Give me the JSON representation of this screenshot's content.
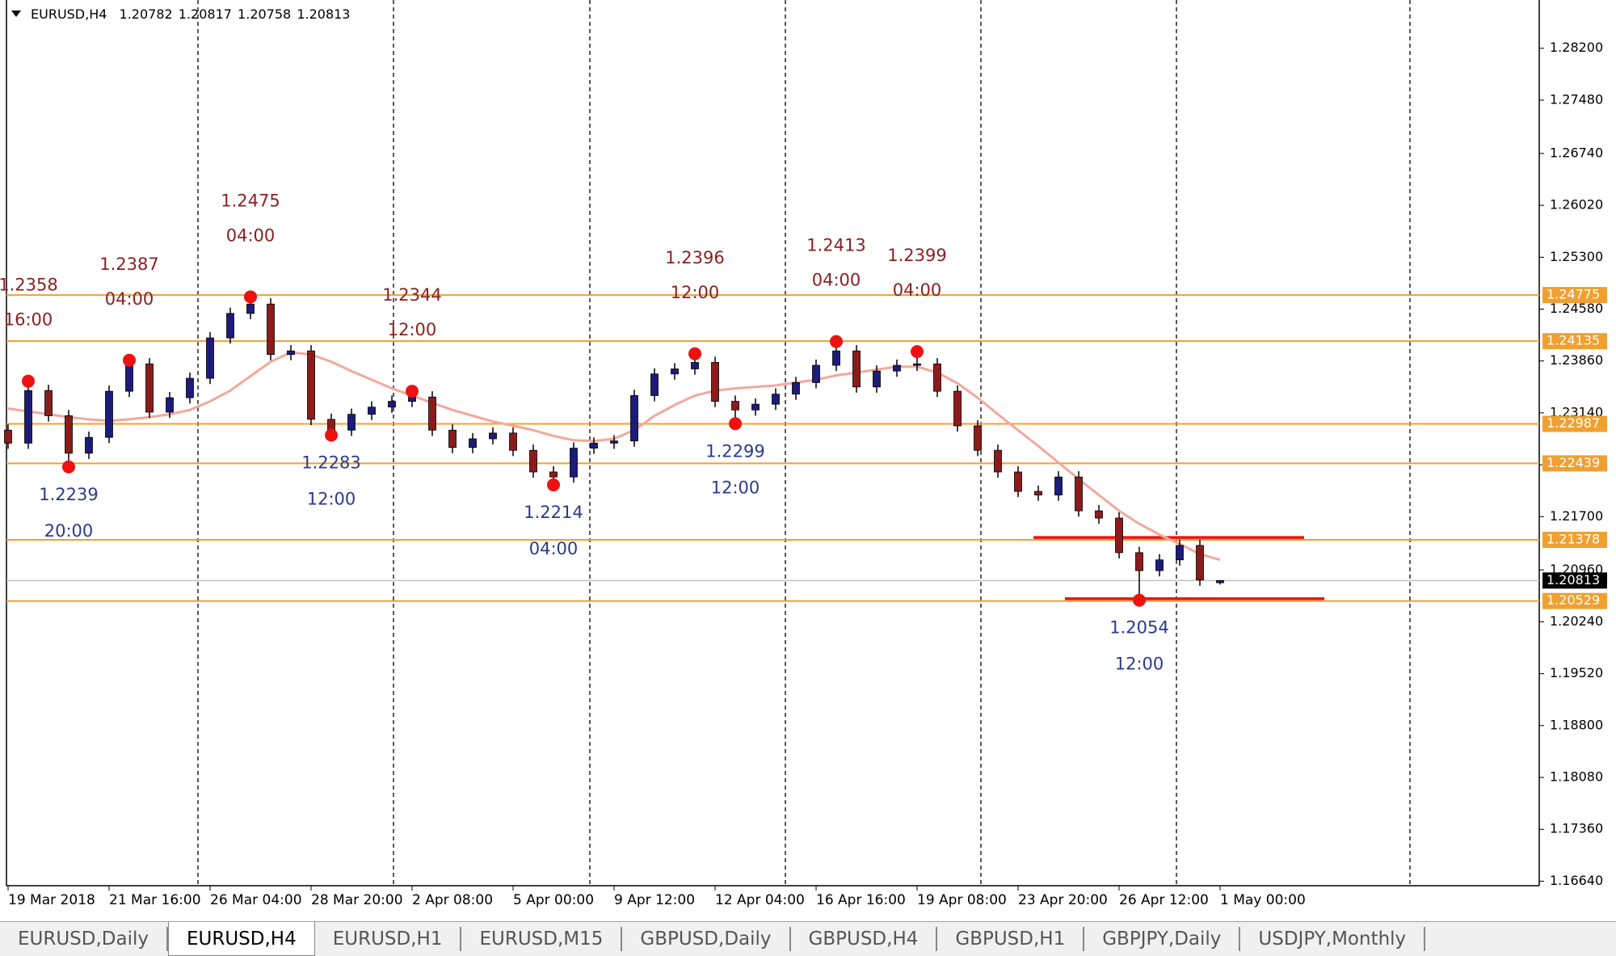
{
  "chart_data": {
    "type": "candlestick",
    "title": "EURUSD,H4",
    "candles": {
      "open": [
        1.229,
        1.2272,
        1.2345,
        1.231,
        1.2258,
        1.228,
        1.2344,
        1.2382,
        1.2315,
        1.2335,
        1.2362,
        1.2418,
        1.2452,
        1.2465,
        1.2395,
        1.24,
        1.2305,
        1.229,
        1.2312,
        1.2322,
        1.233,
        1.2336,
        1.229,
        1.2266,
        1.2278,
        1.2286,
        1.2262,
        1.2232,
        1.2225,
        1.2265,
        1.2272,
        1.2275,
        1.2338,
        1.2368,
        1.2375,
        1.2384,
        1.233,
        1.2318,
        1.2326,
        1.234,
        1.2356,
        1.238,
        1.24,
        1.235,
        1.2372,
        1.238,
        1.2382,
        1.2344,
        1.2296,
        1.2262,
        1.2232,
        1.2205,
        1.22,
        1.2225,
        1.2178,
        1.2168,
        1.212,
        1.2095,
        1.211,
        1.213,
        1.20782
      ],
      "high": [
        1.2298,
        1.2358,
        1.2353,
        1.2318,
        1.2288,
        1.2352,
        1.2387,
        1.239,
        1.2343,
        1.237,
        1.2426,
        1.246,
        1.2475,
        1.2473,
        1.2408,
        1.2408,
        1.2313,
        1.232,
        1.233,
        1.2338,
        1.2344,
        1.2344,
        1.2298,
        1.2286,
        1.2294,
        1.2294,
        1.227,
        1.224,
        1.2273,
        1.228,
        1.2283,
        1.2346,
        1.2376,
        1.2383,
        1.2396,
        1.2392,
        1.2338,
        1.2334,
        1.2348,
        1.2364,
        1.2388,
        1.2413,
        1.2408,
        1.238,
        1.2388,
        1.2399,
        1.239,
        1.2352,
        1.2304,
        1.227,
        1.224,
        1.2213,
        1.2233,
        1.2233,
        1.2186,
        1.2176,
        1.2128,
        1.2118,
        1.2138,
        1.2138,
        1.20817
      ],
      "low": [
        1.2264,
        1.2264,
        1.2302,
        1.2239,
        1.225,
        1.2272,
        1.2336,
        1.2307,
        1.2307,
        1.2327,
        1.2354,
        1.241,
        1.2444,
        1.2387,
        1.2387,
        1.2297,
        1.2283,
        1.2282,
        1.2304,
        1.2314,
        1.2322,
        1.2282,
        1.2258,
        1.2258,
        1.227,
        1.2254,
        1.2224,
        1.2214,
        1.2217,
        1.2257,
        1.2264,
        1.2267,
        1.233,
        1.236,
        1.2367,
        1.2322,
        1.2299,
        1.231,
        1.2318,
        1.2332,
        1.2348,
        1.2372,
        1.2342,
        1.2342,
        1.2364,
        1.2372,
        1.2336,
        1.2288,
        1.2254,
        1.2224,
        1.2197,
        1.2192,
        1.2192,
        1.217,
        1.216,
        1.2112,
        1.2054,
        1.2087,
        1.2102,
        1.2074,
        1.20758
      ],
      "close": [
        1.2272,
        1.2345,
        1.231,
        1.2258,
        1.228,
        1.2344,
        1.2382,
        1.2315,
        1.2335,
        1.2362,
        1.2418,
        1.2452,
        1.2465,
        1.2395,
        1.24,
        1.2305,
        1.229,
        1.2312,
        1.2322,
        1.233,
        1.2336,
        1.229,
        1.2266,
        1.2278,
        1.2286,
        1.2262,
        1.2232,
        1.2225,
        1.2265,
        1.2272,
        1.2275,
        1.2338,
        1.2368,
        1.2375,
        1.2384,
        1.233,
        1.2318,
        1.2326,
        1.234,
        1.2356,
        1.238,
        1.24,
        1.235,
        1.2372,
        1.238,
        1.2382,
        1.2344,
        1.2296,
        1.2262,
        1.2232,
        1.2205,
        1.22,
        1.2225,
        1.2178,
        1.2168,
        1.212,
        1.2095,
        1.211,
        1.213,
        1.2082,
        1.20813
      ],
      "up_color": "#1c1c7a",
      "down_color": "#8b1c1c"
    },
    "ma": {
      "color": "#f2a89c",
      "values": [
        1.232,
        1.2316,
        1.2312,
        1.2308,
        1.2305,
        1.2303,
        1.2305,
        1.2308,
        1.2312,
        1.2318,
        1.233,
        1.2345,
        1.2365,
        1.2385,
        1.2398,
        1.2395,
        1.2385,
        1.2372,
        1.236,
        1.2348,
        1.2338,
        1.2328,
        1.2318,
        1.231,
        1.2302,
        1.2296,
        1.229,
        1.2282,
        1.2276,
        1.2275,
        1.2278,
        1.229,
        1.231,
        1.2325,
        1.2338,
        1.2345,
        1.2348,
        1.235,
        1.2352,
        1.2356,
        1.236,
        1.2366,
        1.237,
        1.2374,
        1.2378,
        1.2378,
        1.237,
        1.2355,
        1.2335,
        1.2312,
        1.229,
        1.2268,
        1.2245,
        1.2222,
        1.22,
        1.2178,
        1.216,
        1.2145,
        1.2132,
        1.2118,
        1.211
      ]
    },
    "categories": [
      "19 Mar 2018",
      "21 Mar 16:00",
      "26 Mar 04:00",
      "28 Mar 20:00",
      "2 Apr 08:00",
      "5 Apr 00:00",
      "9 Apr 12:00",
      "12 Apr 04:00",
      "16 Apr 16:00",
      "19 Apr 08:00",
      "23 Apr 20:00",
      "26 Apr 12:00",
      "1 May 00:00"
    ],
    "ylim": [
      1.166,
      1.2887
    ],
    "yticks": [
      {
        "value": 1.282,
        "label": "1.28200"
      },
      {
        "value": 1.2748,
        "label": "1.27480"
      },
      {
        "value": 1.2674,
        "label": "1.26740"
      },
      {
        "value": 1.2602,
        "label": "1.26020"
      },
      {
        "value": 1.253,
        "label": "1.25300"
      },
      {
        "value": 1.2458,
        "label": "1.24580"
      },
      {
        "value": 1.2386,
        "label": "1.23860"
      },
      {
        "value": 1.2314,
        "label": "1.23140"
      },
      {
        "value": 1.2242,
        "label": "1.22420"
      },
      {
        "value": 1.217,
        "label": "1.21700"
      },
      {
        "value": 1.2096,
        "label": "1.20960"
      },
      {
        "value": 1.2024,
        "label": "1.20240"
      },
      {
        "value": 1.1952,
        "label": "1.19520"
      },
      {
        "value": 1.188,
        "label": "1.18800"
      },
      {
        "value": 1.1808,
        "label": "1.18080"
      },
      {
        "value": 1.1736,
        "label": "1.17360"
      },
      {
        "value": 1.1664,
        "label": "1.16640"
      }
    ],
    "levels": {
      "color": "#f0a030",
      "values": [
        1.24775,
        1.24135,
        1.22987,
        1.22439,
        1.21378,
        1.20529
      ]
    },
    "red_lines": {
      "color": "#ee1111",
      "values": [
        1.2141,
        1.2056
      ]
    },
    "swings": [
      {
        "value": 1.2358,
        "time": "16:00",
        "kind": "high"
      },
      {
        "value": 1.2239,
        "time": "20:00",
        "kind": "low"
      },
      {
        "value": 1.2387,
        "time": "04:00",
        "kind": "high"
      },
      {
        "value": 1.2475,
        "time": "04:00",
        "kind": "high"
      },
      {
        "value": 1.2283,
        "time": "12:00",
        "kind": "low"
      },
      {
        "value": 1.2344,
        "time": "12:00",
        "kind": "high"
      },
      {
        "value": 1.2214,
        "time": "04:00",
        "kind": "low"
      },
      {
        "value": 1.2396,
        "time": "12:00",
        "kind": "high"
      },
      {
        "value": 1.2299,
        "time": "12:00",
        "kind": "low"
      },
      {
        "value": 1.2413,
        "time": "04:00",
        "kind": "high"
      },
      {
        "value": 1.2399,
        "time": "04:00",
        "kind": "high"
      },
      {
        "value": 1.2054,
        "time": "12:00",
        "kind": "low"
      }
    ]
  },
  "tabs": {
    "items": [
      "EURUSD,Daily",
      "EURUSD,H4",
      "EURUSD,H1",
      "EURUSD,M15",
      "GBPUSD,Daily",
      "GBPUSD,H4",
      "GBPUSD,H1",
      "GBPJPY,Daily",
      "USDJPY,Monthly"
    ],
    "active": 1
  }
}
